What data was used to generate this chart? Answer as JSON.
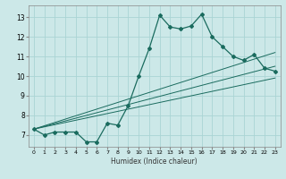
{
  "title": "",
  "xlabel": "Humidex (Indice chaleur)",
  "ylabel": "",
  "bg_color": "#cce8e8",
  "line_color": "#1a6b5e",
  "grid_color": "#aad4d4",
  "xlim": [
    -0.5,
    23.5
  ],
  "ylim": [
    6.4,
    13.6
  ],
  "yticks": [
    7,
    8,
    9,
    10,
    11,
    12,
    13
  ],
  "xticks": [
    0,
    1,
    2,
    3,
    4,
    5,
    6,
    7,
    8,
    9,
    10,
    11,
    12,
    13,
    14,
    15,
    16,
    17,
    18,
    19,
    20,
    21,
    22,
    23
  ],
  "line1_x": [
    0,
    1,
    2,
    3,
    4,
    5,
    6,
    7,
    8,
    9,
    10,
    11,
    12,
    13,
    14,
    15,
    16,
    17,
    18,
    19,
    20,
    21,
    22,
    23
  ],
  "line1_y": [
    7.3,
    7.0,
    7.15,
    7.15,
    7.15,
    6.65,
    6.65,
    7.6,
    7.5,
    8.5,
    10.0,
    11.4,
    13.1,
    12.5,
    12.4,
    12.55,
    13.15,
    12.0,
    11.5,
    11.0,
    10.8,
    11.1,
    10.4,
    10.25
  ],
  "line2_x": [
    0,
    23
  ],
  "line2_y": [
    7.3,
    11.2
  ],
  "line3_x": [
    0,
    23
  ],
  "line3_y": [
    7.3,
    10.5
  ],
  "line4_x": [
    0,
    23
  ],
  "line4_y": [
    7.3,
    9.9
  ]
}
